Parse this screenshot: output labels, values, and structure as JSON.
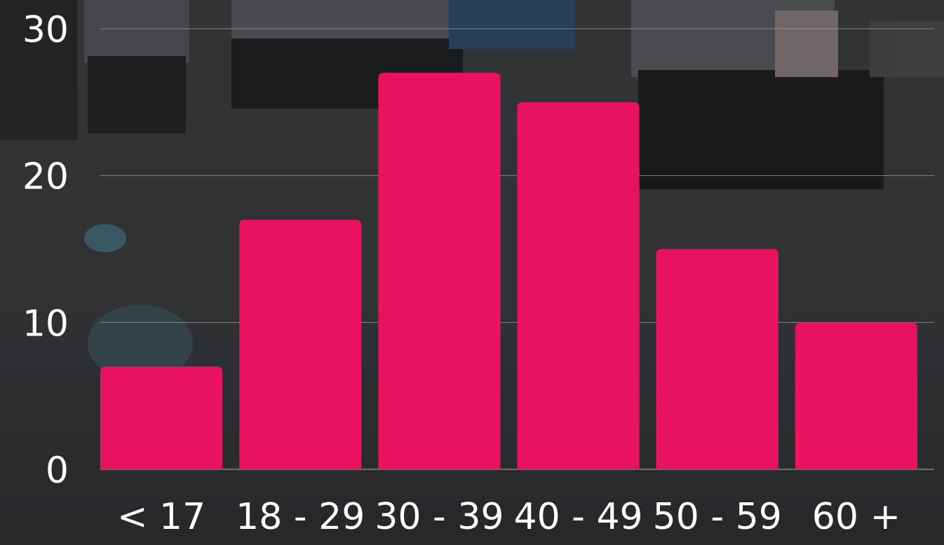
{
  "chart_data": {
    "type": "bar",
    "categories": [
      "< 17",
      "18 - 29",
      "30 - 39",
      "40 - 49",
      "50 - 59",
      "60 +"
    ],
    "values": [
      7,
      17,
      27,
      25,
      15,
      10
    ],
    "title": "",
    "xlabel": "",
    "ylabel": "",
    "ylim": [
      0,
      30
    ],
    "yticks": [
      0,
      10,
      20,
      30
    ],
    "grid": true,
    "bar_color": "#e8125f",
    "grid_color": "#9a9a9a",
    "label_color": "#ffffff"
  }
}
